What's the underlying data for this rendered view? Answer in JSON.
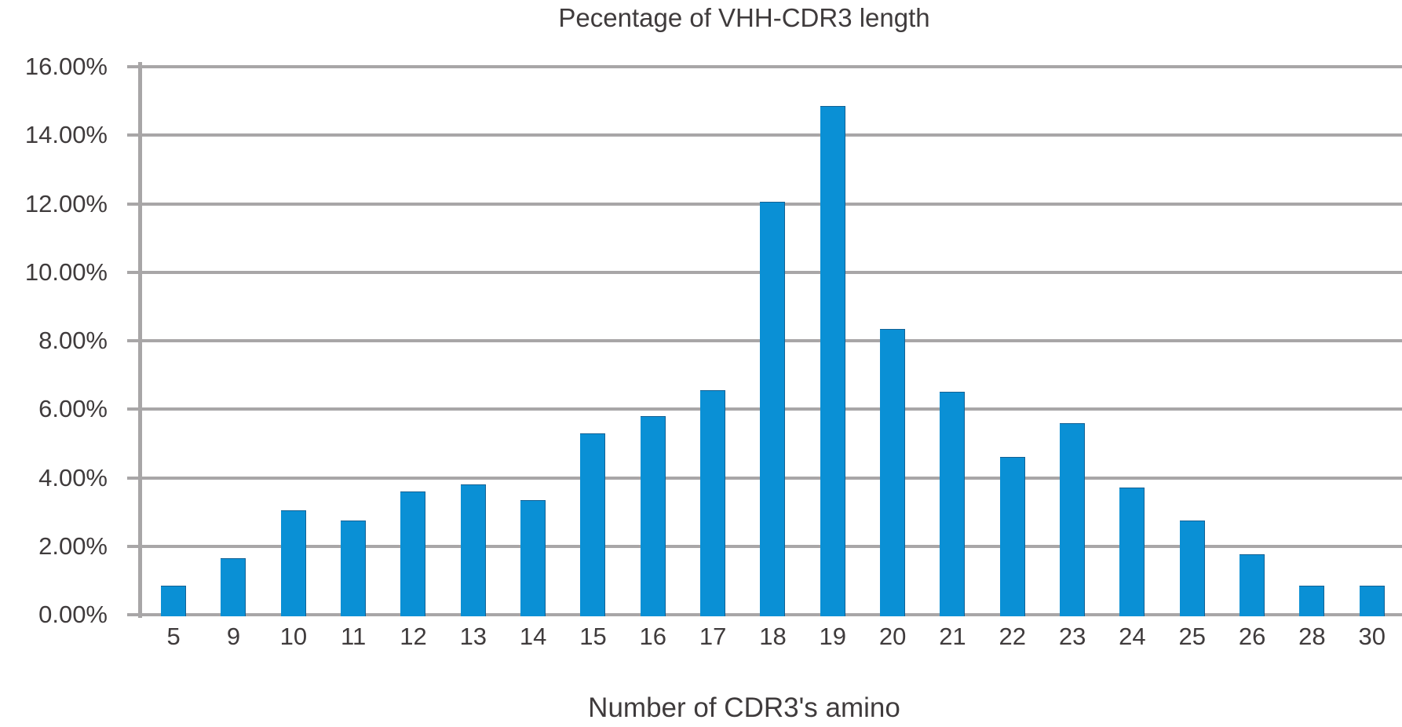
{
  "chart_data": {
    "type": "bar",
    "title": "Pecentage of VHH-CDR3 length",
    "xlabel": "Number of CDR3's amino",
    "ylabel": "",
    "categories": [
      "5",
      "9",
      "10",
      "11",
      "12",
      "13",
      "14",
      "15",
      "16",
      "17",
      "18",
      "19",
      "20",
      "21",
      "22",
      "23",
      "24",
      "25",
      "26",
      "28",
      "30"
    ],
    "values": [
      0.9,
      1.7,
      3.1,
      2.8,
      3.65,
      3.85,
      3.4,
      5.35,
      5.85,
      6.6,
      12.1,
      14.9,
      8.4,
      6.55,
      4.65,
      5.65,
      3.75,
      2.8,
      1.8,
      0.9,
      0.9
    ],
    "ylim": [
      0,
      16
    ],
    "ytick_step": 2,
    "ytick_labels": [
      "0.00%",
      "2.00%",
      "4.00%",
      "6.00%",
      "8.00%",
      "10.00%",
      "12.00%",
      "14.00%",
      "16.00%"
    ],
    "grid": true,
    "legend": "none",
    "bar_color": "#0a90d5",
    "gridline_color": "#a8a6a7",
    "text_color": "#3f3b3c"
  }
}
